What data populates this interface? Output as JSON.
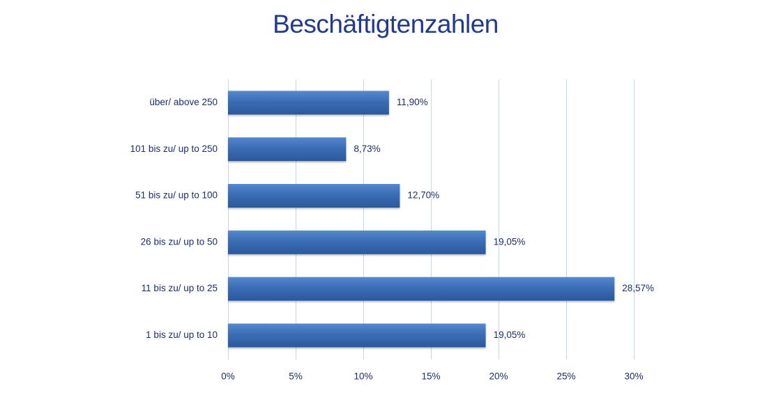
{
  "chart_data": {
    "type": "bar",
    "orientation": "horizontal",
    "title": "Beschäftigtenzahlen",
    "categories": [
      "über/ above 250",
      "101 bis zu/ up to 250",
      "51 bis zu/ up to 100",
      "26 bis zu/ up to 50",
      "11 bis zu/ up to 25",
      "1 bis zu/ up to 10"
    ],
    "values": [
      11.9,
      8.73,
      12.7,
      19.05,
      28.57,
      19.05
    ],
    "data_labels": [
      "11,90%",
      "8,73%",
      "12,70%",
      "19,05%",
      "28,57%",
      "19,05%"
    ],
    "xlim": [
      0,
      30
    ],
    "xticks": [
      0,
      5,
      10,
      15,
      20,
      25,
      30
    ],
    "xtick_labels": [
      "0%",
      "5%",
      "10%",
      "15%",
      "20%",
      "25%",
      "30%"
    ],
    "xlabel": "",
    "ylabel": "",
    "grid": "vertical",
    "legend": "none",
    "colors": {
      "bar": "#3a6db5",
      "bar_light": "#5588cc",
      "bar_dark": "#2c589a",
      "title": "#213a8f",
      "text": "#1d2d6b",
      "grid": "#c5d7e8"
    }
  }
}
